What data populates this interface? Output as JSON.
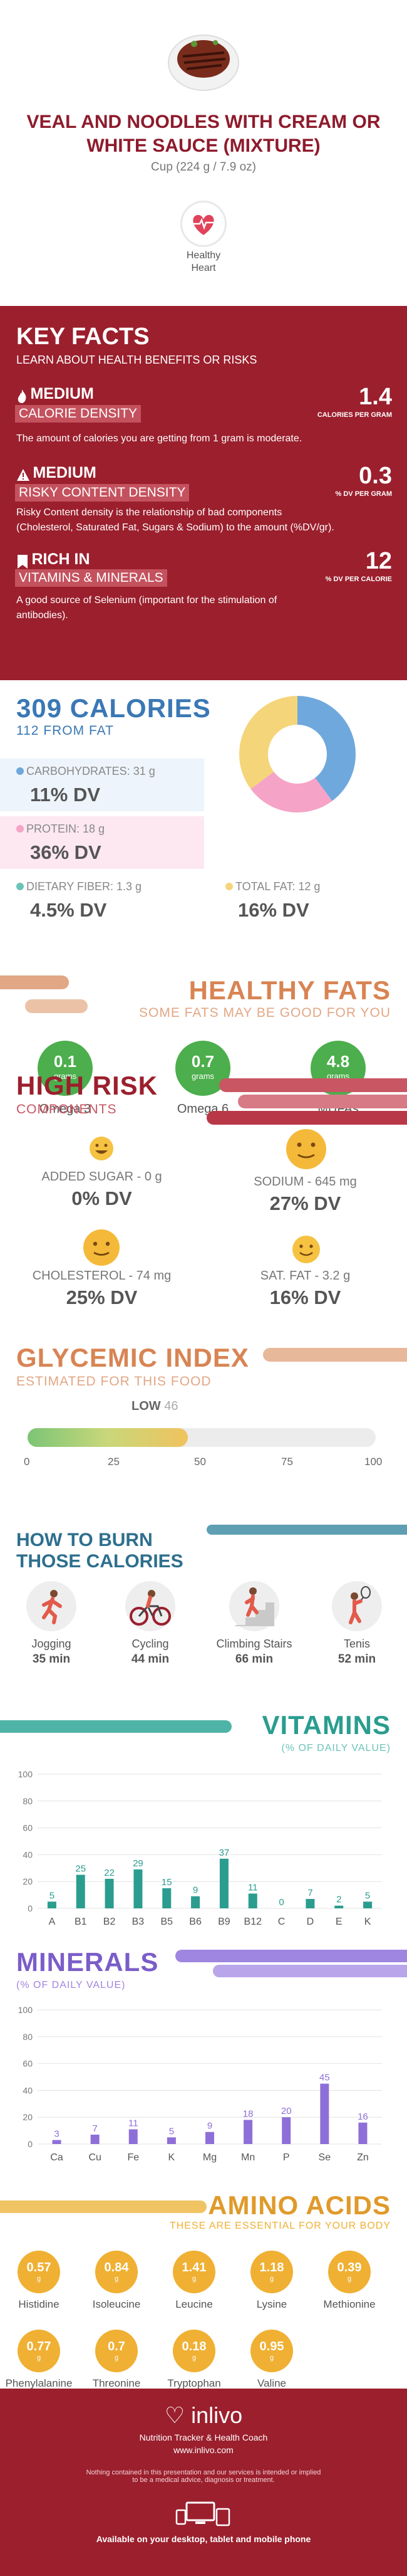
{
  "header": {
    "title_line1": "VEAL AND NOODLES WITH CREAM OR",
    "title_line2": "WHITE SAUCE (MIXTURE)",
    "serving": "Cup (224 g / 7.9 oz)",
    "badge_line1": "Healthy",
    "badge_line2": "Heart"
  },
  "key_facts": {
    "title": "KEY FACTS",
    "subtitle": "LEARN ABOUT HEALTH BENEFITS OR RISKS",
    "items": [
      {
        "level": "MEDIUM",
        "name": "CALORIE DENSITY",
        "value": "1.4",
        "unit": "CALORIES PER GRAM",
        "desc": "The amount of calories you are getting from 1 gram is moderate."
      },
      {
        "level": "MEDIUM",
        "name": "RISKY CONTENT DENSITY",
        "value": "0.3",
        "unit": "% DV PER GRAM",
        "desc_line1": "Risky Content density is the relationship of bad components",
        "desc_line2": "(Cholesterol, Saturated Fat, Sugars & Sodium) to the amount (%DV/gr)."
      },
      {
        "level": "RICH  IN",
        "name": "VITAMINS & MINERALS",
        "value": "12",
        "unit": "% DV PER CALORIE",
        "desc_line1": "A good source of Selenium (important for the stimulation of",
        "desc_line2": "antibodies)."
      }
    ]
  },
  "calories": {
    "title": "309 CALORIES",
    "subtitle": "112 FROM FAT",
    "carbs_label": "CARBOHYDRATES: 31 g",
    "carbs_dv": "11% DV",
    "protein_label": "PROTEIN: 18 g",
    "protein_dv": "36% DV",
    "fiber_label": "DIETARY FIBER: 1.3 g",
    "fiber_dv": "4.5% DV",
    "fat_label": "TOTAL FAT: 12 g",
    "fat_dv": "16% DV",
    "colors": {
      "carbs": "#6fa8dc",
      "protein": "#f5a3c7",
      "fiber": "#6cc4b8",
      "fat": "#f5d57a"
    }
  },
  "healthy_fats": {
    "title": "HEALTHY FATS",
    "subtitle": "SOME FATS MAY BE GOOD FOR YOU",
    "items": [
      {
        "value": "0.1",
        "unit": "grams",
        "name": "Omega 3"
      },
      {
        "value": "0.7",
        "unit": "grams",
        "name": "Omega 6"
      },
      {
        "value": "4.8",
        "unit": "grams",
        "name": "MUFAs"
      }
    ]
  },
  "high_risk": {
    "title": "HIGH RISK",
    "subtitle": "COMPONENTS",
    "items": [
      {
        "label": "ADDED SUGAR - 0 g",
        "dv": "0% DV"
      },
      {
        "label": "SODIUM - 645 mg",
        "dv": "27% DV"
      },
      {
        "label": "CHOLESTEROL - 74 mg",
        "dv": "25% DV"
      },
      {
        "label": "SAT. FAT - 3.2 g",
        "dv": "16% DV"
      }
    ]
  },
  "glycemic": {
    "title": "GLYCEMIC INDEX",
    "subtitle": "ESTIMATED FOR THIS FOOD",
    "level": "LOW",
    "value": 46,
    "value_text": "46",
    "ticks": [
      "0",
      "25",
      "50",
      "75",
      "100"
    ]
  },
  "burn": {
    "title_line1": "HOW TO BURN",
    "title_line2": "THOSE CALORIES",
    "items": [
      {
        "name": "Jogging",
        "time": "35 min"
      },
      {
        "name": "Cycling",
        "time": "44 min"
      },
      {
        "name": "Climbing Stairs",
        "time": "66 min"
      },
      {
        "name": "Tenis",
        "time": "52 min"
      }
    ]
  },
  "vitamins": {
    "title": "VITAMINS",
    "subtitle": "(% OF DAILY VALUE)"
  },
  "minerals": {
    "title": "MINERALS",
    "subtitle": "(% OF DAILY VALUE)"
  },
  "chart_data": [
    {
      "type": "bar",
      "categories": [
        "A",
        "B1",
        "B2",
        "B3",
        "B5",
        "B6",
        "B9",
        "B12",
        "C",
        "D",
        "E",
        "K"
      ],
      "values": [
        5,
        25,
        22,
        29,
        15,
        9,
        37,
        11,
        0,
        7,
        2,
        5
      ],
      "value_labels": [
        "5",
        "25",
        "22",
        "29",
        "15",
        "9",
        "37",
        "11",
        "0",
        "7",
        "2",
        "5"
      ],
      "ylim": [
        0,
        100
      ],
      "yticks": [
        "0",
        "20",
        "40",
        "60",
        "80",
        "100"
      ],
      "color": "#2a9d8f"
    },
    {
      "type": "bar",
      "categories": [
        "Ca",
        "Cu",
        "Fe",
        "K",
        "Mg",
        "Mn",
        "P",
        "Se",
        "Zn"
      ],
      "values": [
        3,
        7,
        11,
        5,
        9,
        18,
        20,
        45,
        16
      ],
      "value_labels": [
        "3",
        "7",
        "11",
        "5",
        "9",
        "18",
        "20",
        "45",
        "16"
      ],
      "ylim": [
        0,
        100
      ],
      "yticks": [
        "0",
        "20",
        "40",
        "60",
        "80",
        "100"
      ],
      "color": "#8e6fd8"
    }
  ],
  "amino": {
    "title": "AMINO ACIDS",
    "subtitle": "THESE ARE ESSENTIAL FOR YOUR BODY",
    "unit": "g",
    "items": [
      {
        "value": "0.57",
        "name": "Histidine"
      },
      {
        "value": "0.84",
        "name": "Isoleucine"
      },
      {
        "value": "1.41",
        "name": "Leucine"
      },
      {
        "value": "1.18",
        "name": "Lysine"
      },
      {
        "value": "0.39",
        "name": "Methionine"
      },
      {
        "value": "0.77",
        "name": "Phenylalanine"
      },
      {
        "value": "0.7",
        "name": "Threonine"
      },
      {
        "value": "0.18",
        "name": "Tryptophan"
      },
      {
        "value": "0.95",
        "name": "Valine"
      }
    ]
  },
  "footer": {
    "brand": "inlivo",
    "tagline": "Nutrition Tracker & Health Coach",
    "url": "www.inlivo.com",
    "disclaimer_line1": "Nothing contained in this presentation and our services is intended or implied",
    "disclaimer_line2": "to be a medical advice, diagnosis or treatment.",
    "available": "Available on your desktop, tablet and mobile phone"
  }
}
